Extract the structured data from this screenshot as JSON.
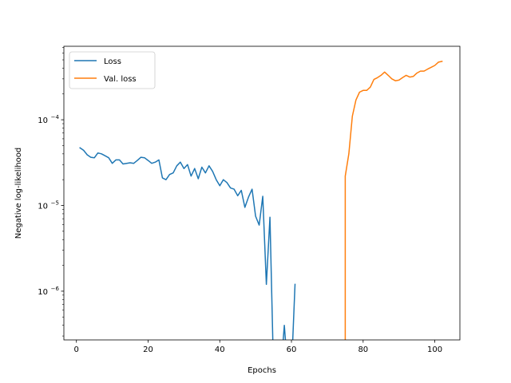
{
  "chart_data": {
    "type": "line",
    "title": "",
    "xlabel": "Epochs",
    "ylabel": "Negative log-likelihood",
    "yscale": "log",
    "xlim": [
      -3.5,
      107
    ],
    "ylim": [
      2.7e-07,
      0.00072
    ],
    "x_ticks": [
      0,
      20,
      40,
      60,
      80,
      100
    ],
    "y_ticks": [
      {
        "value": 1e-06,
        "base": "10",
        "exp": "−6"
      },
      {
        "value": 1e-05,
        "base": "10",
        "exp": "−5"
      },
      {
        "value": 0.0001,
        "base": "10",
        "exp": "−4"
      }
    ],
    "grid": false,
    "legend": {
      "position": "upper-left"
    },
    "series": [
      {
        "name": "Loss",
        "color": "#1f77b4",
        "x": [
          1,
          2,
          3,
          4,
          5,
          6,
          7,
          8,
          9,
          10,
          11,
          12,
          13,
          14,
          15,
          16,
          17,
          18,
          19,
          20,
          21,
          22,
          23,
          24,
          25,
          26,
          27,
          28,
          29,
          30,
          31,
          32,
          33,
          34,
          35,
          36,
          37,
          38,
          39,
          40,
          41,
          42,
          43,
          44,
          45,
          46,
          47,
          48,
          49,
          50,
          51,
          52,
          53,
          54,
          55,
          56,
          57,
          58,
          59,
          60,
          61
        ],
        "y": [
          4.7e-05,
          4.4e-05,
          3.9e-05,
          3.65e-05,
          3.6e-05,
          4.1e-05,
          4e-05,
          3.8e-05,
          3.6e-05,
          3.1e-05,
          3.4e-05,
          3.4e-05,
          3.05e-05,
          3.1e-05,
          3.15e-05,
          3.1e-05,
          3.35e-05,
          3.65e-05,
          3.6e-05,
          3.35e-05,
          3.1e-05,
          3.2e-05,
          3.4e-05,
          2.1e-05,
          2e-05,
          2.3e-05,
          2.4e-05,
          2.9e-05,
          3.2e-05,
          2.7e-05,
          3e-05,
          2.2e-05,
          2.7e-05,
          2.05e-05,
          2.8e-05,
          2.4e-05,
          2.9e-05,
          2.5e-05,
          2e-05,
          1.7e-05,
          2e-05,
          1.85e-05,
          1.6e-05,
          1.55e-05,
          1.3e-05,
          1.5e-05,
          9.5e-06,
          1.25e-05,
          1.55e-05,
          7.5e-06,
          5.9e-06,
          1.28e-05,
          1.2e-06,
          7.3e-06,
          null,
          null,
          null,
          4e-07,
          null,
          null,
          1.2e-06
        ]
      },
      {
        "name": "Val. loss",
        "color": "#ff7f0e",
        "x": [
          75,
          76,
          77,
          78,
          79,
          80,
          81,
          82,
          83,
          84,
          85,
          86,
          87,
          88,
          89,
          90,
          91,
          92,
          93,
          94,
          95,
          96,
          97,
          98,
          99,
          100,
          101,
          102
        ],
        "y": [
          2.2e-05,
          4e-05,
          0.00011,
          0.00017,
          0.00021,
          0.00022,
          0.00022,
          0.00024,
          0.000295,
          0.00031,
          0.00033,
          0.00036,
          0.00033,
          0.0003,
          0.000285,
          0.00029,
          0.00031,
          0.00033,
          0.000315,
          0.00032,
          0.00035,
          0.00037,
          0.00037,
          0.00039,
          0.00041,
          0.00043,
          0.00047,
          0.00048
        ]
      }
    ]
  }
}
